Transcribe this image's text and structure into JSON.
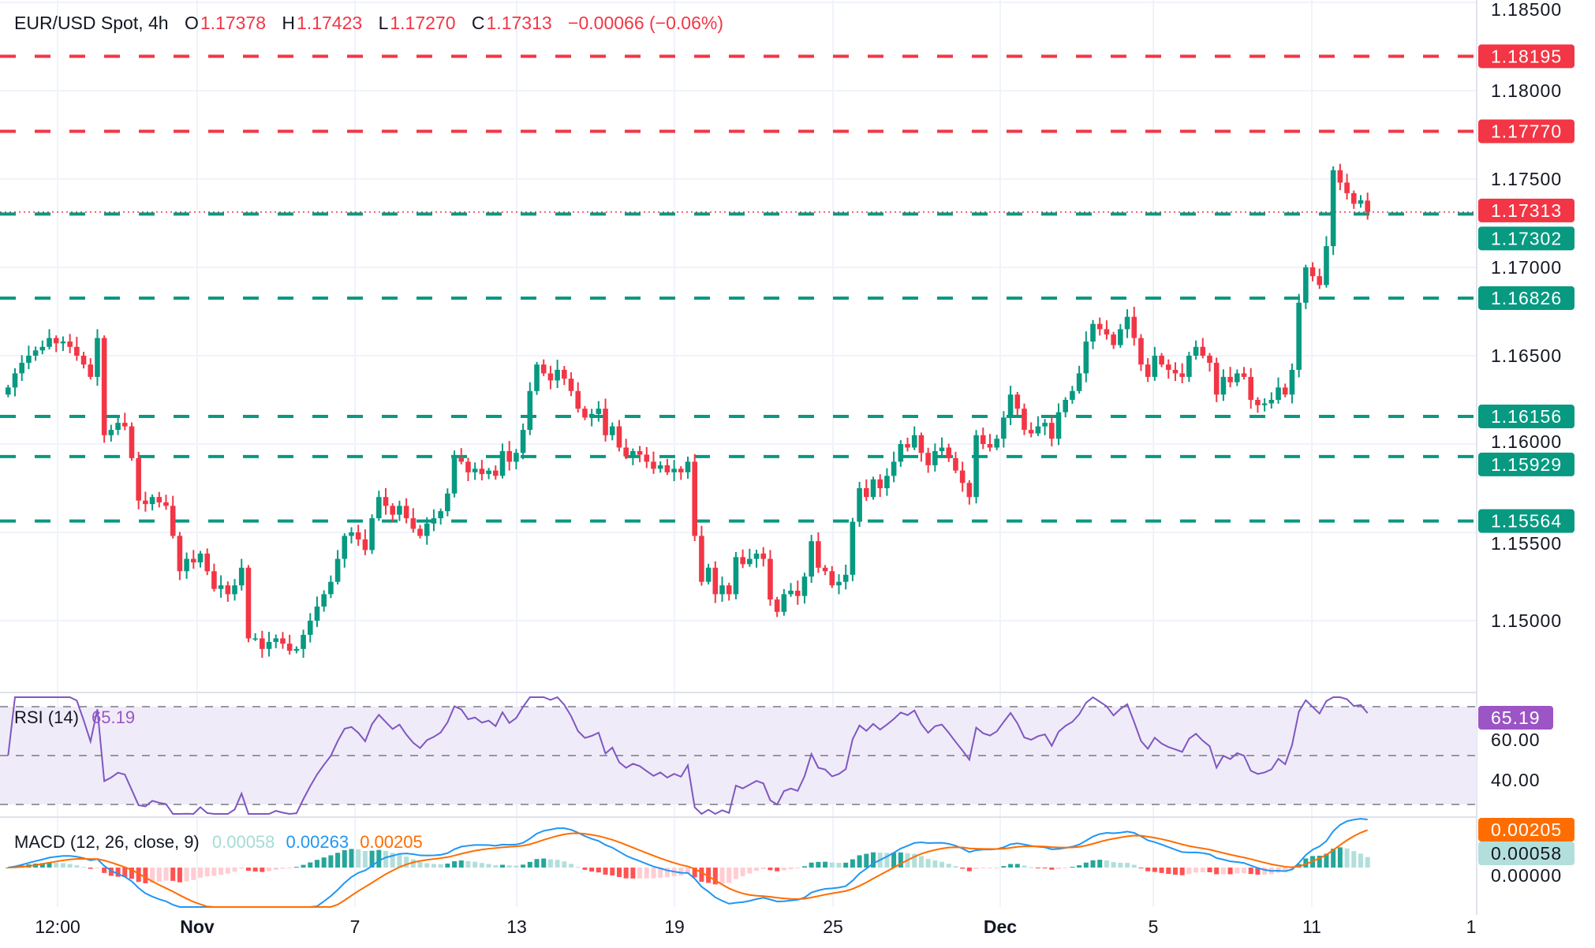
{
  "header": {
    "symbol": "EUR/USD Spot, 4h",
    "o_label": "O",
    "o": "1.17378",
    "h_label": "H",
    "h": "1.17423",
    "l_label": "L",
    "l": "1.17270",
    "c_label": "C",
    "c": "1.17313",
    "change": "−0.00066 (−0.06%)"
  },
  "price_axis": {
    "ticks": [
      "1.18500",
      "1.18000",
      "1.17500",
      "1.17000",
      "1.16500",
      "1.16000",
      "1.15500",
      "1.15000"
    ]
  },
  "levels": [
    {
      "value": 1.18195,
      "label": "1.18195",
      "color": "#f23645",
      "style": "dashed"
    },
    {
      "value": 1.1777,
      "label": "1.17770",
      "color": "#f23645",
      "style": "dashed"
    },
    {
      "value": 1.17313,
      "label": "1.17313",
      "color": "#f23645",
      "style": "dotted"
    },
    {
      "value": 1.17302,
      "label": "1.17302",
      "color": "#089981",
      "style": "dashed"
    },
    {
      "value": 1.16826,
      "label": "1.16826",
      "color": "#089981",
      "style": "dashed"
    },
    {
      "value": 1.16156,
      "label": "1.16156",
      "color": "#089981",
      "style": "dashed"
    },
    {
      "value": 1.15929,
      "label": "1.15929",
      "color": "#089981",
      "style": "dashed"
    },
    {
      "value": 1.15564,
      "label": "1.15564",
      "color": "#089981",
      "style": "dashed"
    }
  ],
  "rsi": {
    "title": "RSI (14)",
    "value": "65.19",
    "ticks": [
      "60.00",
      "40.00"
    ],
    "color": "#7e57c2",
    "label_color": "#9c55c4"
  },
  "macd": {
    "title": "MACD (12, 26, close, 9)",
    "hist": "0.00058",
    "macd": "0.00263",
    "signal": "0.00205",
    "axis_tick": "0.00000",
    "macd_color": "#2196f3",
    "signal_color": "#ff6d00",
    "hist_label_color": "#b2dfdb"
  },
  "time_axis": [
    "12:00",
    "Nov",
    "7",
    "13",
    "19",
    "25",
    "Dec",
    "5",
    "11",
    "1"
  ],
  "colors": {
    "up": "#089981",
    "down": "#f23645",
    "grid": "#f0f3fa"
  },
  "chart_data": {
    "type": "candlestick",
    "symbol": "EUR/USD",
    "interval": "4h",
    "ylim": [
      1.1435,
      1.1853
    ],
    "first_open": 1.1628,
    "closes": [
      1.1632,
      1.164,
      1.1646,
      1.165,
      1.1653,
      1.1655,
      1.166,
      1.1657,
      1.1658,
      1.1655,
      1.165,
      1.1645,
      1.1638,
      1.166,
      1.1605,
      1.1608,
      1.1612,
      1.161,
      1.1592,
      1.1568,
      1.1566,
      1.157,
      1.1567,
      1.1565,
      1.1548,
      1.1528,
      1.1535,
      1.1533,
      1.1538,
      1.1528,
      1.1518,
      1.152,
      1.1515,
      1.152,
      1.153,
      1.149,
      1.149,
      1.1484,
      1.1488,
      1.149,
      1.1487,
      1.1483,
      1.1484,
      1.1492,
      1.15,
      1.1508,
      1.1515,
      1.1522,
      1.1535,
      1.1548,
      1.155,
      1.1546,
      1.154,
      1.1558,
      1.157,
      1.1565,
      1.156,
      1.1565,
      1.1558,
      1.1552,
      1.1548,
      1.1555,
      1.1558,
      1.1562,
      1.1572,
      1.1592,
      1.159,
      1.1584,
      1.1586,
      1.1583,
      1.1585,
      1.1582,
      1.1596,
      1.159,
      1.1595,
      1.1608,
      1.163,
      1.1645,
      1.164,
      1.1636,
      1.1642,
      1.1637,
      1.163,
      1.162,
      1.1615,
      1.1617,
      1.162,
      1.1605,
      1.161,
      1.1598,
      1.1593,
      1.1596,
      1.1594,
      1.159,
      1.1586,
      1.1588,
      1.1584,
      1.1586,
      1.1584,
      1.159,
      1.1548,
      1.1522,
      1.153,
      1.1515,
      1.152,
      1.1515,
      1.1536,
      1.1532,
      1.1535,
      1.1538,
      1.1535,
      1.1512,
      1.1505,
      1.1515,
      1.1517,
      1.1514,
      1.1525,
      1.1545,
      1.153,
      1.1528,
      1.152,
      1.1522,
      1.1526,
      1.1556,
      1.1575,
      1.157,
      1.158,
      1.1575,
      1.1582,
      1.159,
      1.16,
      1.1598,
      1.1605,
      1.1595,
      1.1588,
      1.1596,
      1.1598,
      1.1592,
      1.1585,
      1.1578,
      1.157,
      1.1605,
      1.16,
      1.1598,
      1.1603,
      1.1615,
      1.1628,
      1.162,
      1.1608,
      1.1606,
      1.161,
      1.1612,
      1.1603,
      1.1618,
      1.1625,
      1.163,
      1.164,
      1.1658,
      1.1668,
      1.1665,
      1.1662,
      1.1656,
      1.1665,
      1.1672,
      1.166,
      1.1645,
      1.1638,
      1.165,
      1.1645,
      1.1642,
      1.164,
      1.1638,
      1.165,
      1.1655,
      1.165,
      1.1646,
      1.1628,
      1.1638,
      1.1635,
      1.164,
      1.1638,
      1.1625,
      1.1622,
      1.1623,
      1.1625,
      1.1632,
      1.1628,
      1.1642,
      1.168,
      1.17,
      1.1695,
      1.169,
      1.1712,
      1.1755,
      1.1748,
      1.1742,
      1.1736,
      1.1738,
      1.17313
    ],
    "last_candle": {
      "open": 1.17378,
      "high": 1.17423,
      "low": 1.1727,
      "close": 1.17313
    }
  }
}
